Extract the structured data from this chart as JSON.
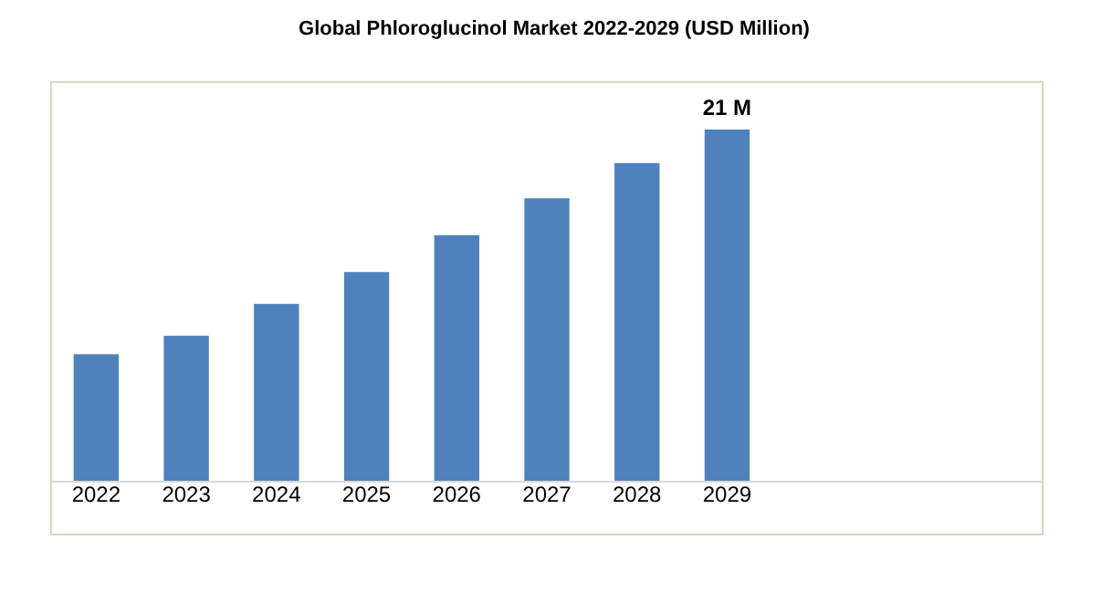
{
  "chart_data": {
    "type": "bar",
    "title": "Global Phloroglucinol Market 2022-2029 (USD Million)",
    "categories": [
      "2022",
      "2023",
      "2024",
      "2025",
      "2026",
      "2027",
      "2028",
      "2029",
      null,
      null,
      null
    ],
    "values": [
      7.6,
      8.7,
      10.6,
      12.5,
      14.7,
      16.9,
      19.0,
      21,
      null,
      null,
      null
    ],
    "value_labels": [
      null,
      null,
      null,
      null,
      null,
      null,
      null,
      "21 M",
      null,
      null,
      null
    ],
    "color": "#4f81bd"
  }
}
